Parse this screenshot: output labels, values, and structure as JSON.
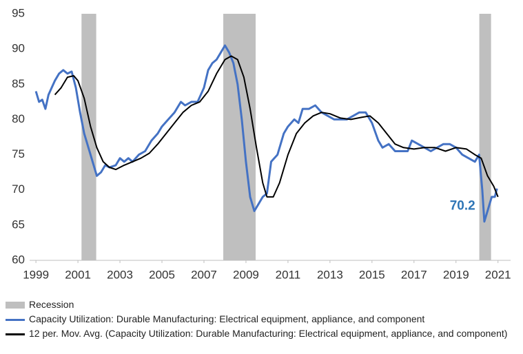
{
  "chart_data": {
    "type": "line",
    "xlim": [
      1998.7,
      2021.6
    ],
    "ylim": [
      60,
      95
    ],
    "xticks": [
      1999,
      2001,
      2003,
      2005,
      2007,
      2009,
      2011,
      2013,
      2015,
      2017,
      2019,
      2021
    ],
    "yticks": [
      60,
      65,
      70,
      75,
      80,
      85,
      90,
      95
    ],
    "grid": false,
    "recession_name": "Recession",
    "recession_color": "#bfbfbf",
    "recessions": [
      [
        2001.17,
        2001.87
      ],
      [
        2007.92,
        2009.46
      ],
      [
        2020.11,
        2020.67
      ]
    ],
    "annotation": {
      "text": "70.2",
      "x": 2020.95,
      "y": 70.2,
      "color": "#2e75b6"
    },
    "series": [
      {
        "name": "Capacity Utilization: Durable Manufacturing: Electrical equipment, appliance, and component",
        "color": "#4472c4",
        "x": [
          1999.0,
          1999.15,
          1999.3,
          1999.45,
          1999.6,
          1999.75,
          1999.9,
          2000.1,
          2000.3,
          2000.5,
          2000.7,
          2000.9,
          2001.1,
          2001.3,
          2001.5,
          2001.7,
          2001.9,
          2002.1,
          2002.3,
          2002.5,
          2002.8,
          2003.0,
          2003.2,
          2003.4,
          2003.6,
          2003.9,
          2004.2,
          2004.5,
          2004.8,
          2005.0,
          2005.3,
          2005.6,
          2005.9,
          2006.1,
          2006.4,
          2006.7,
          2007.0,
          2007.2,
          2007.4,
          2007.6,
          2007.8,
          2008.0,
          2008.2,
          2008.4,
          2008.6,
          2008.8,
          2009.0,
          2009.2,
          2009.4,
          2009.6,
          2009.8,
          2010.0,
          2010.2,
          2010.5,
          2010.8,
          2011.0,
          2011.3,
          2011.5,
          2011.7,
          2012.0,
          2012.3,
          2012.6,
          2012.9,
          2013.2,
          2013.5,
          2013.8,
          2014.1,
          2014.4,
          2014.7,
          2015.0,
          2015.3,
          2015.5,
          2015.8,
          2016.1,
          2016.4,
          2016.7,
          2016.9,
          2017.2,
          2017.5,
          2017.8,
          2018.1,
          2018.4,
          2018.7,
          2019.0,
          2019.3,
          2019.6,
          2019.9,
          2020.1,
          2020.25,
          2020.35,
          2020.5,
          2020.7,
          2020.85,
          2020.95
        ],
        "values": [
          84,
          82.5,
          82.8,
          81.5,
          83.5,
          84.5,
          85.5,
          86.5,
          87,
          86.5,
          86.8,
          84.5,
          81,
          78,
          76,
          74,
          72,
          72.5,
          73.5,
          73.2,
          73.5,
          74.5,
          74,
          74.5,
          74,
          75,
          75.5,
          77,
          78,
          79,
          80,
          81,
          82.5,
          82,
          82.5,
          82.5,
          84.5,
          87,
          88,
          88.5,
          89.5,
          90.5,
          89.5,
          88,
          85,
          80,
          74,
          69,
          67,
          68,
          69,
          69.5,
          74,
          75,
          78,
          79,
          80,
          79.5,
          81.5,
          81.5,
          82,
          81,
          80.5,
          80,
          80,
          80,
          80.5,
          81,
          81,
          79.5,
          77,
          76,
          76.5,
          75.5,
          75.5,
          75.5,
          77,
          76.5,
          76,
          75.5,
          76,
          76.5,
          76.5,
          76,
          75,
          74.5,
          74,
          75,
          70,
          65.5,
          67,
          69,
          69,
          70.2
        ]
      },
      {
        "name": "12 per. Mov. Avg. (Capacity Utilization: Durable Manufacturing: Electrical equipment, appliance, and component)",
        "color": "#000000",
        "x": [
          1999.9,
          2000.2,
          2000.5,
          2000.8,
          2001.0,
          2001.3,
          2001.6,
          2001.9,
          2002.2,
          2002.5,
          2002.8,
          2003.2,
          2003.6,
          2004.0,
          2004.4,
          2004.8,
          2005.2,
          2005.6,
          2006.0,
          2006.4,
          2006.8,
          2007.2,
          2007.6,
          2008.0,
          2008.3,
          2008.6,
          2008.9,
          2009.2,
          2009.5,
          2009.8,
          2010.0,
          2010.3,
          2010.6,
          2011.0,
          2011.4,
          2011.8,
          2012.2,
          2012.6,
          2013.0,
          2013.5,
          2014.0,
          2014.5,
          2014.9,
          2015.3,
          2015.7,
          2016.1,
          2016.5,
          2017.0,
          2017.5,
          2018.0,
          2018.5,
          2019.0,
          2019.5,
          2019.9,
          2020.2,
          2020.5,
          2020.8,
          2021.0
        ],
        "values": [
          83.5,
          84.5,
          86,
          86.2,
          85.5,
          83,
          79,
          76,
          74,
          73.2,
          72.9,
          73.5,
          74,
          74.5,
          75.2,
          76.5,
          78,
          79.5,
          81,
          82,
          82.5,
          84,
          86.5,
          88.5,
          89,
          88.5,
          86,
          81.5,
          76,
          71,
          69,
          69,
          71,
          75,
          78,
          79.5,
          80.5,
          81,
          80.8,
          80.2,
          80,
          80.3,
          80.5,
          79.5,
          78,
          76.5,
          76,
          75.8,
          76,
          76,
          75.5,
          76,
          75.8,
          75,
          74.5,
          72,
          70.5,
          69
        ]
      }
    ]
  }
}
